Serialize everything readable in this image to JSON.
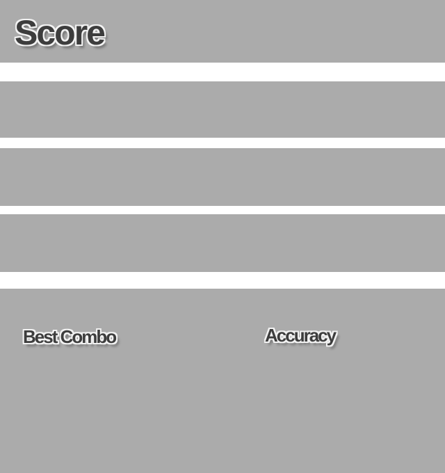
{
  "header": {
    "title": "Score"
  },
  "summary_panel": {
    "best_combo_label": "Best Combo",
    "accuracy_label": "Accuracy"
  },
  "colors": {
    "background": "#ffffff",
    "band": "#ababab",
    "label_fill": "#3d3d3d",
    "label_outline": "#f2f2f2"
  }
}
